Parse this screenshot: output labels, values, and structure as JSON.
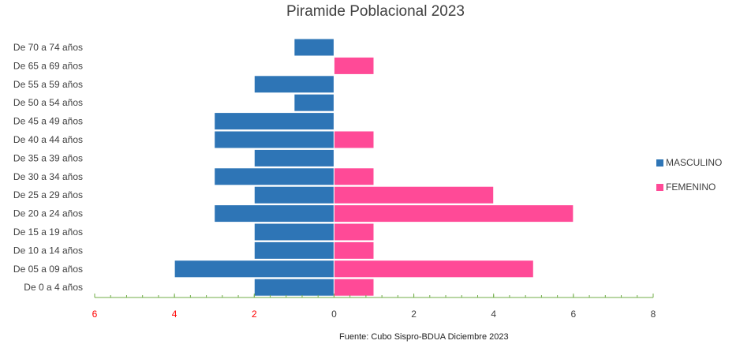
{
  "chart_data": {
    "type": "bar",
    "orientation": "horizontal",
    "title": "Piramide Poblacional 2023",
    "source": "Fuente: Cubo Sispro-BDUA Diciembre 2023",
    "categories": [
      "De 70 a 74 años",
      "De 65 a 69 años",
      "De 55 a 59 años",
      "De 50 a 54 años",
      "De 45 a 49 años",
      "De 40 a 44 años",
      "De 35 a 39 años",
      "De 30 a 34 años",
      "De 25 a 29 años",
      "De 20 a 24 años",
      "De 15 a 19 años",
      "De 10 a 14 años",
      "De 05 a 09 años",
      "De 0 a 4 años"
    ],
    "series": [
      {
        "name": "MASCULINO",
        "color": "#2e75b6",
        "values": [
          -1,
          0,
          -2,
          -1,
          -3,
          -3,
          -2,
          -3,
          -2,
          -3,
          -2,
          -2,
          -4,
          -2
        ]
      },
      {
        "name": "FEMENINO",
        "color": "#ff4a97",
        "values": [
          0,
          1,
          0,
          0,
          0,
          1,
          0,
          1,
          4,
          6,
          1,
          1,
          5,
          1
        ]
      }
    ],
    "xlim": [
      -6,
      8
    ],
    "xticks": [
      -6,
      -4,
      -2,
      0,
      2,
      4,
      6,
      8
    ],
    "xtick_labels": [
      "6",
      "4",
      "2",
      "0",
      "2",
      "4",
      "6",
      "8"
    ],
    "xtick_colors": [
      "#ff0000",
      "#ff0000",
      "#ff0000",
      "#404040",
      "#404040",
      "#404040",
      "#404040",
      "#404040"
    ],
    "axis_color": "#70ad47",
    "legend_position": "right",
    "grid": false
  }
}
